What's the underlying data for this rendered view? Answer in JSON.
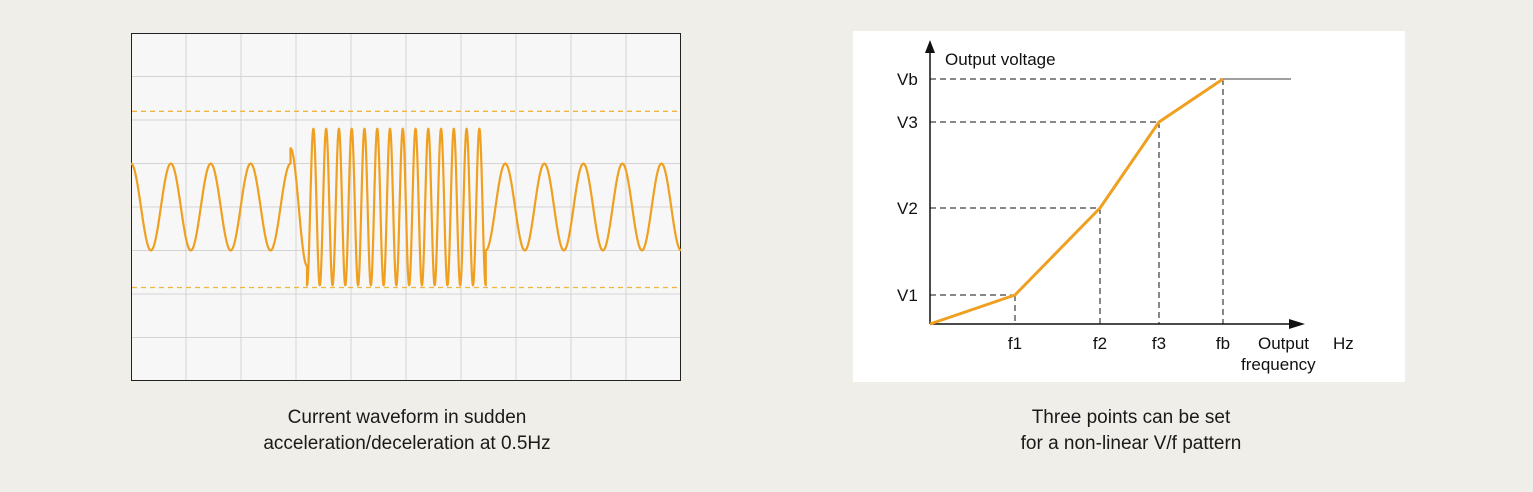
{
  "colors": {
    "waveform": "#f0a020",
    "limit_line": "#f2b640",
    "grid": "#d4d4d4",
    "scope_bg": "#f7f7f7",
    "vf_line": "#f0a020",
    "page_bg": "#efeee8"
  },
  "chart_data": [
    {
      "type": "line",
      "description_caption": [
        "Current waveform in sudden",
        "acceleration/deceleration at 0.5Hz"
      ],
      "grid": true,
      "grid_divisions": {
        "x": 10,
        "y": 8
      },
      "ylim": [
        -4,
        4
      ],
      "limit_lines": [
        2.2,
        -1.85
      ],
      "segments": [
        {
          "x_start": 0.0,
          "x_end": 2.9,
          "amplitude": 1.0,
          "cycles": 4
        },
        {
          "x_start": 2.9,
          "x_end": 3.2,
          "amplitude": 1.35,
          "cycles": 0.5
        },
        {
          "x_start": 3.2,
          "x_end": 6.45,
          "amplitude": 1.8,
          "cycles": 14
        },
        {
          "x_start": 6.45,
          "x_end": 10.0,
          "amplitude": 1.0,
          "cycles": 5
        }
      ]
    },
    {
      "type": "line",
      "xlabel": "Output frequency",
      "xunit": "Hz",
      "ylabel": "Output voltage",
      "x_ticks": [
        "f1",
        "f2",
        "f3",
        "fb"
      ],
      "y_ticks": [
        "V1",
        "V2",
        "V3",
        "Vb"
      ],
      "x": [
        0,
        1,
        2,
        3,
        4,
        5
      ],
      "y": [
        0,
        1,
        3,
        5,
        6,
        6
      ],
      "description_caption": [
        "Three points can be set",
        "for a non-linear V/f pattern"
      ]
    }
  ]
}
